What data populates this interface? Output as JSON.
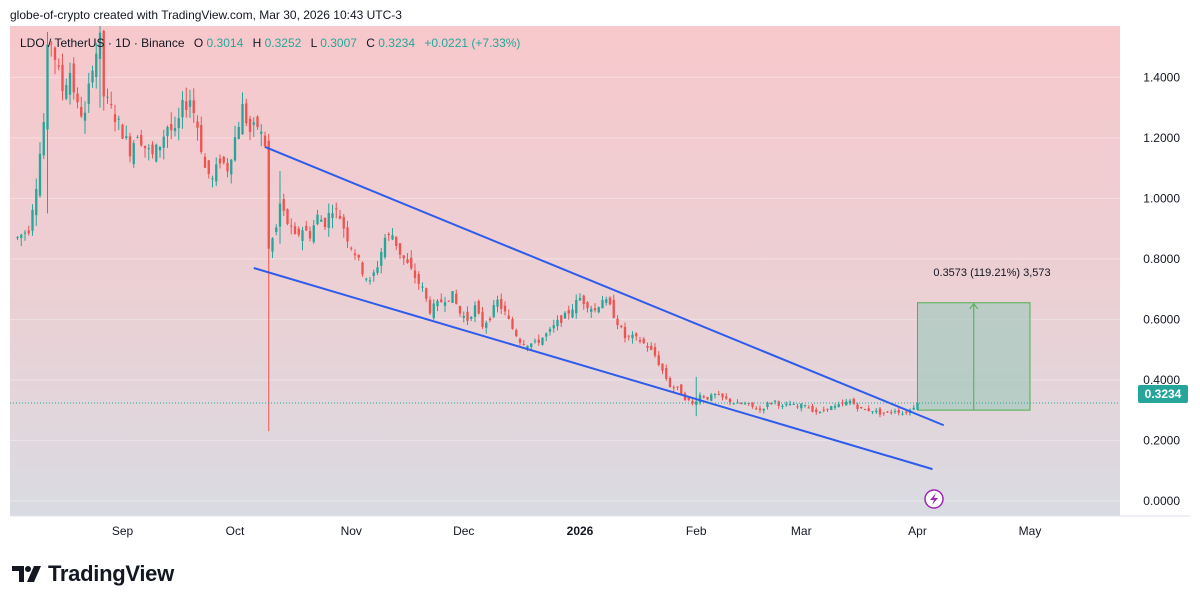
{
  "header": {
    "attribution": "globe-of-crypto created with TradingView.com, Mar 30, 2026 10:43 UTC-3"
  },
  "legend": {
    "symbol": "LDO / TetherUS · 1D · Binance",
    "o_label": "O",
    "o_value": "0.3014",
    "h_label": "H",
    "h_value": "0.3252",
    "l_label": "L",
    "l_value": "0.3007",
    "c_label": "C",
    "c_value": "0.3234",
    "change": "+0.0221 (+7.33%)"
  },
  "price_label": "0.3234",
  "measure_label": "0.3573 (119.21%) 3,573",
  "logo": {
    "text": "TradingView"
  },
  "colors": {
    "up": "#26a69a",
    "down": "#ef5350",
    "trendline": "#2f5bea",
    "bg_top": "#f6c9cd",
    "bg_bottom": "#dcdde3",
    "measure_fill": "#a9c9bf",
    "price_tag": "#26a69a"
  },
  "chart_data": {
    "type": "candlestick",
    "title": "LDO / TetherUS · 1D · Binance",
    "ylim": [
      -0.05,
      1.57
    ],
    "y_ticks": [
      "1.4000",
      "1.2000",
      "1.0000",
      "0.8000",
      "0.6000",
      "0.4000",
      "0.2000",
      "0.0000"
    ],
    "y_tick_values": [
      1.4,
      1.2,
      1.0,
      0.8,
      0.6,
      0.4,
      0.2,
      0.0
    ],
    "x_ticks": [
      {
        "label": "Sep",
        "t": 28
      },
      {
        "label": "Oct",
        "t": 58
      },
      {
        "label": "Nov",
        "t": 89
      },
      {
        "label": "Dec",
        "t": 119
      },
      {
        "label": "2026",
        "t": 150
      },
      {
        "label": "Feb",
        "t": 181
      },
      {
        "label": "Mar",
        "t": 209
      },
      {
        "label": "Apr",
        "t": 240
      },
      {
        "label": "May",
        "t": 270
      }
    ],
    "x_range": [
      -2,
      294
    ],
    "last_t": 240,
    "close_anchors": [
      [
        0,
        0.87
      ],
      [
        3,
        0.9
      ],
      [
        5,
        1.05
      ],
      [
        7,
        1.25
      ],
      [
        8,
        1.48
      ],
      [
        9,
        1.52
      ],
      [
        12,
        1.36
      ],
      [
        14,
        1.42
      ],
      [
        16,
        1.3
      ],
      [
        18,
        1.27
      ],
      [
        20,
        1.45
      ],
      [
        22,
        1.52
      ],
      [
        23,
        1.34
      ],
      [
        26,
        1.27
      ],
      [
        28,
        1.22
      ],
      [
        30,
        1.16
      ],
      [
        32,
        1.22
      ],
      [
        34,
        1.17
      ],
      [
        36,
        1.14
      ],
      [
        38,
        1.18
      ],
      [
        40,
        1.24
      ],
      [
        42,
        1.21
      ],
      [
        44,
        1.3
      ],
      [
        46,
        1.33
      ],
      [
        48,
        1.24
      ],
      [
        50,
        1.1
      ],
      [
        52,
        1.06
      ],
      [
        54,
        1.13
      ],
      [
        56,
        1.1
      ],
      [
        58,
        1.2
      ],
      [
        60,
        1.3
      ],
      [
        62,
        1.22
      ],
      [
        64,
        1.24
      ],
      [
        66,
        1.18
      ],
      [
        67,
        0.83
      ],
      [
        69,
        0.9
      ],
      [
        70,
        0.98
      ],
      [
        72,
        0.92
      ],
      [
        74,
        0.87
      ],
      [
        76,
        0.9
      ],
      [
        78,
        0.88
      ],
      [
        80,
        0.94
      ],
      [
        82,
        0.92
      ],
      [
        84,
        0.97
      ],
      [
        86,
        0.94
      ],
      [
        88,
        0.87
      ],
      [
        90,
        0.82
      ],
      [
        92,
        0.76
      ],
      [
        94,
        0.72
      ],
      [
        96,
        0.78
      ],
      [
        98,
        0.87
      ],
      [
        100,
        0.88
      ],
      [
        102,
        0.82
      ],
      [
        104,
        0.78
      ],
      [
        106,
        0.74
      ],
      [
        108,
        0.7
      ],
      [
        110,
        0.63
      ],
      [
        112,
        0.65
      ],
      [
        114,
        0.67
      ],
      [
        116,
        0.68
      ],
      [
        118,
        0.62
      ],
      [
        120,
        0.6
      ],
      [
        122,
        0.64
      ],
      [
        124,
        0.58
      ],
      [
        126,
        0.61
      ],
      [
        128,
        0.66
      ],
      [
        130,
        0.62
      ],
      [
        132,
        0.57
      ],
      [
        134,
        0.53
      ],
      [
        136,
        0.52
      ],
      [
        138,
        0.52
      ],
      [
        140,
        0.54
      ],
      [
        142,
        0.56
      ],
      [
        144,
        0.59
      ],
      [
        146,
        0.61
      ],
      [
        148,
        0.64
      ],
      [
        150,
        0.67
      ],
      [
        152,
        0.65
      ],
      [
        154,
        0.63
      ],
      [
        156,
        0.67
      ],
      [
        158,
        0.64
      ],
      [
        160,
        0.59
      ],
      [
        162,
        0.54
      ],
      [
        164,
        0.54
      ],
      [
        166,
        0.53
      ],
      [
        168,
        0.51
      ],
      [
        170,
        0.48
      ],
      [
        172,
        0.43
      ],
      [
        174,
        0.38
      ],
      [
        176,
        0.37
      ],
      [
        178,
        0.34
      ],
      [
        180,
        0.32
      ],
      [
        182,
        0.35
      ],
      [
        184,
        0.34
      ],
      [
        186,
        0.35
      ],
      [
        188,
        0.34
      ],
      [
        190,
        0.33
      ],
      [
        192,
        0.32
      ],
      [
        194,
        0.32
      ],
      [
        196,
        0.31
      ],
      [
        198,
        0.3
      ],
      [
        200,
        0.32
      ],
      [
        202,
        0.33
      ],
      [
        204,
        0.31
      ],
      [
        206,
        0.32
      ],
      [
        208,
        0.31
      ],
      [
        210,
        0.32
      ],
      [
        212,
        0.3
      ],
      [
        214,
        0.29
      ],
      [
        216,
        0.31
      ],
      [
        218,
        0.31
      ],
      [
        220,
        0.32
      ],
      [
        222,
        0.33
      ],
      [
        224,
        0.31
      ],
      [
        226,
        0.3
      ],
      [
        228,
        0.3
      ],
      [
        230,
        0.29
      ],
      [
        232,
        0.29
      ],
      [
        234,
        0.3
      ],
      [
        236,
        0.29
      ],
      [
        238,
        0.3014
      ],
      [
        240,
        0.3234
      ]
    ],
    "wick_spikes": [
      {
        "t": 8,
        "low": 0.95,
        "high": 1.55
      },
      {
        "t": 22,
        "low": 1.3,
        "high": 1.57
      },
      {
        "t": 67,
        "low": 0.23,
        "high": 1.18
      },
      {
        "t": 70,
        "low": 0.85,
        "high": 1.09
      },
      {
        "t": 181,
        "low": 0.28,
        "high": 0.41
      }
    ],
    "last_candle": {
      "t": 240,
      "open": 0.3014,
      "high": 0.3252,
      "low": 0.3007,
      "close": 0.3234
    },
    "trendlines": [
      {
        "name": "upper",
        "t1": 66,
        "y1": 1.17,
        "t2": 247,
        "y2": 0.25
      },
      {
        "name": "lower",
        "t1": 63,
        "y1": 0.77,
        "t2": 244,
        "y2": 0.105
      }
    ],
    "measure": {
      "t1": 240,
      "t2": 270,
      "y_low": 0.3,
      "y_high": 0.655,
      "arrow_t": 255
    },
    "last_price": 0.3234
  }
}
